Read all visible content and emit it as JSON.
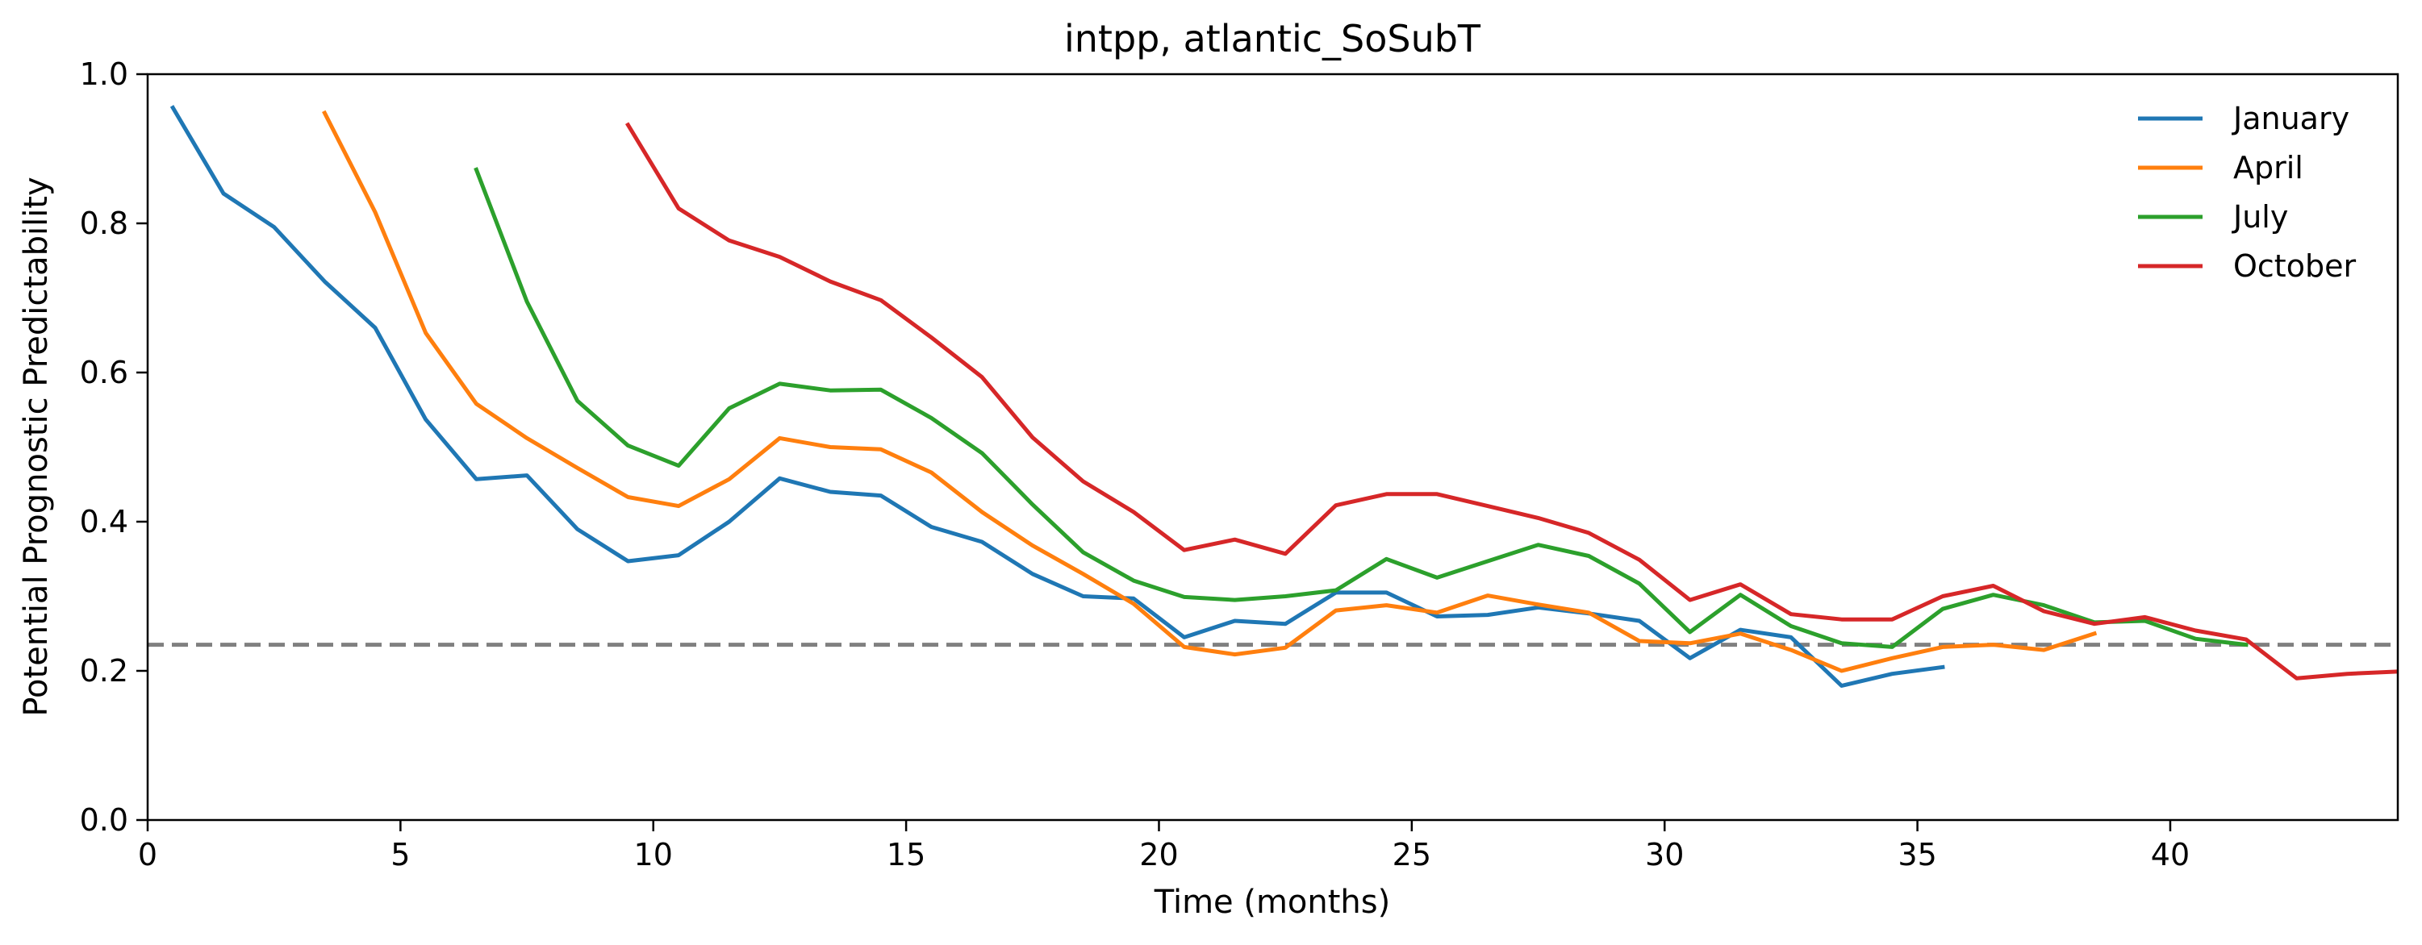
{
  "chart_data": {
    "type": "line",
    "title": "intpp, atlantic_SoSubT",
    "xlabel": "Time (months)",
    "ylabel": "Potential Prognostic Predictability",
    "xlim": [
      0,
      44.5
    ],
    "ylim": [
      0,
      1.0
    ],
    "xticks": [
      0,
      5,
      10,
      15,
      20,
      25,
      30,
      35,
      40
    ],
    "yticks": [
      0.0,
      0.2,
      0.4,
      0.6,
      0.8,
      1.0
    ],
    "xtick_labels": [
      "0",
      "5",
      "10",
      "15",
      "20",
      "25",
      "30",
      "35",
      "40"
    ],
    "ytick_labels": [
      "0.0",
      "0.2",
      "0.4",
      "0.6",
      "0.8",
      "1.0"
    ],
    "grid": false,
    "legend_position": "top-right",
    "threshold": {
      "y": 0.235,
      "style": "dashed",
      "color": "#808080"
    },
    "series": [
      {
        "name": "January",
        "color": "#1f77b4",
        "x": [
          0.5,
          1.5,
          2.5,
          3.5,
          4.5,
          5.5,
          6.5,
          7.5,
          8.5,
          9.5,
          10.5,
          11.5,
          12.5,
          13.5,
          14.5,
          15.5,
          16.5,
          17.5,
          18.5,
          19.5,
          20.5,
          21.5,
          22.5,
          23.5,
          24.5,
          25.5,
          26.5,
          27.5,
          28.5,
          29.5,
          30.5,
          31.5,
          32.5,
          33.5,
          34.5,
          35.5
        ],
        "y": [
          0.955,
          0.84,
          0.795,
          0.722,
          0.66,
          0.537,
          0.457,
          0.462,
          0.39,
          0.347,
          0.355,
          0.4,
          0.458,
          0.44,
          0.435,
          0.393,
          0.373,
          0.33,
          0.3,
          0.297,
          0.245,
          0.267,
          0.263,
          0.305,
          0.305,
          0.273,
          0.275,
          0.285,
          0.277,
          0.267,
          0.217,
          0.255,
          0.245,
          0.18,
          0.196,
          0.205
        ]
      },
      {
        "name": "April",
        "color": "#ff7f0e",
        "x": [
          3.5,
          4.5,
          5.5,
          6.5,
          7.5,
          8.5,
          9.5,
          10.5,
          11.5,
          12.5,
          13.5,
          14.5,
          15.5,
          16.5,
          17.5,
          18.5,
          19.5,
          20.5,
          21.5,
          22.5,
          23.5,
          24.5,
          25.5,
          26.5,
          27.5,
          28.5,
          29.5,
          30.5,
          31.5,
          32.5,
          33.5,
          34.5,
          35.5,
          36.5,
          37.5,
          38.5
        ],
        "y": [
          0.948,
          0.815,
          0.653,
          0.558,
          0.512,
          0.472,
          0.433,
          0.421,
          0.457,
          0.512,
          0.5,
          0.497,
          0.466,
          0.413,
          0.368,
          0.33,
          0.29,
          0.232,
          0.222,
          0.231,
          0.281,
          0.288,
          0.278,
          0.301,
          0.289,
          0.278,
          0.24,
          0.237,
          0.25,
          0.228,
          0.2,
          0.217,
          0.232,
          0.235,
          0.228,
          0.25
        ]
      },
      {
        "name": "July",
        "color": "#2ca02c",
        "x": [
          6.5,
          7.5,
          8.5,
          9.5,
          10.5,
          11.5,
          12.5,
          13.5,
          14.5,
          15.5,
          16.5,
          17.5,
          18.5,
          19.5,
          20.5,
          21.5,
          22.5,
          23.5,
          24.5,
          25.5,
          26.5,
          27.5,
          28.5,
          29.5,
          30.5,
          31.5,
          32.5,
          33.5,
          34.5,
          35.5,
          36.5,
          37.5,
          38.5,
          39.5,
          40.5,
          41.5
        ],
        "y": [
          0.872,
          0.695,
          0.562,
          0.502,
          0.475,
          0.552,
          0.585,
          0.576,
          0.577,
          0.539,
          0.492,
          0.423,
          0.359,
          0.321,
          0.299,
          0.295,
          0.3,
          0.308,
          0.35,
          0.325,
          0.347,
          0.369,
          0.354,
          0.317,
          0.252,
          0.302,
          0.26,
          0.237,
          0.232,
          0.283,
          0.302,
          0.288,
          0.265,
          0.267,
          0.243,
          0.235
        ]
      },
      {
        "name": "October",
        "color": "#d62728",
        "x": [
          9.5,
          10.5,
          11.5,
          12.5,
          13.5,
          14.5,
          15.5,
          16.5,
          17.5,
          18.5,
          19.5,
          20.5,
          21.5,
          22.5,
          23.5,
          24.5,
          25.5,
          26.5,
          27.5,
          28.5,
          29.5,
          30.5,
          31.5,
          32.5,
          33.5,
          34.5,
          35.5,
          36.5,
          37.5,
          38.5,
          39.5,
          40.5,
          41.5,
          42.5,
          43.5,
          44.5
        ],
        "y": [
          0.932,
          0.82,
          0.777,
          0.755,
          0.722,
          0.697,
          0.647,
          0.594,
          0.513,
          0.454,
          0.413,
          0.362,
          0.376,
          0.357,
          0.422,
          0.437,
          0.437,
          0.421,
          0.405,
          0.385,
          0.349,
          0.295,
          0.316,
          0.276,
          0.269,
          0.269,
          0.3,
          0.314,
          0.28,
          0.263,
          0.272,
          0.254,
          0.242,
          0.19,
          0.196,
          0.199
        ]
      }
    ]
  }
}
